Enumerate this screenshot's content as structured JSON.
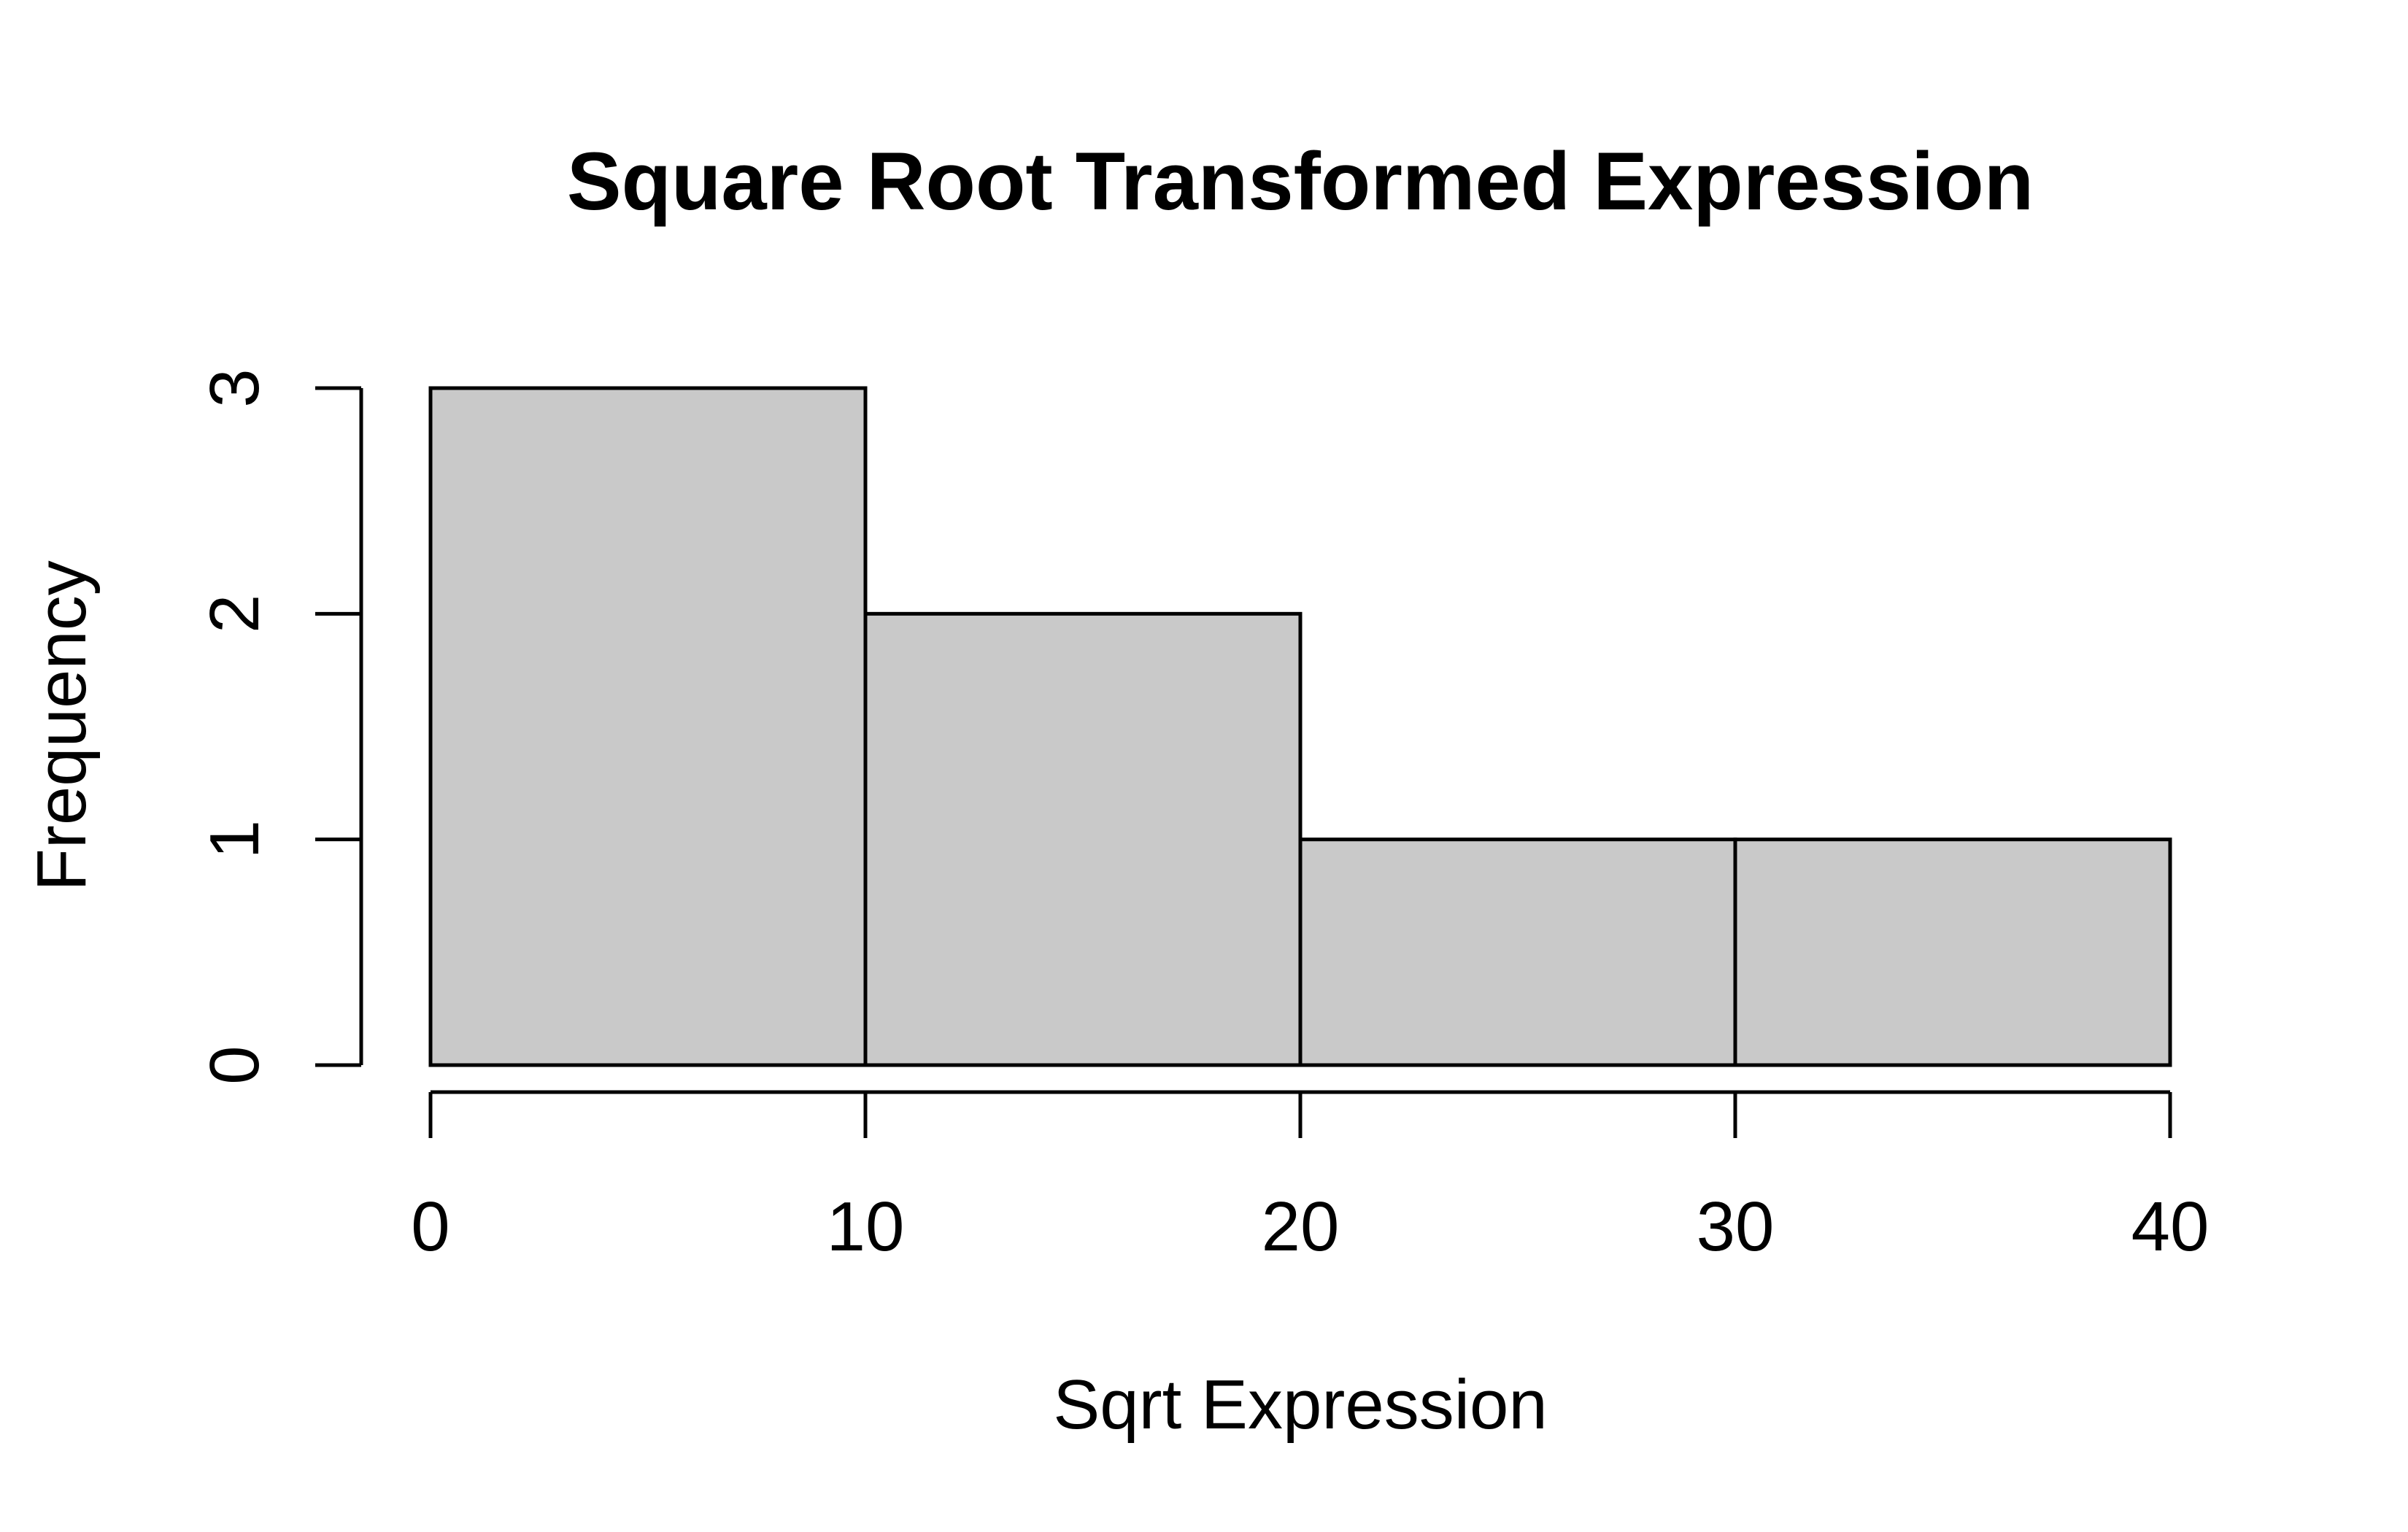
{
  "chart_data": {
    "type": "bar",
    "title": "Square Root Transformed Expression",
    "xlabel": "Sqrt Expression",
    "ylabel": "Frequency",
    "bins": [
      {
        "start": 0,
        "end": 10,
        "count": 3
      },
      {
        "start": 10,
        "end": 20,
        "count": 2
      },
      {
        "start": 20,
        "end": 30,
        "count": 1
      },
      {
        "start": 30,
        "end": 40,
        "count": 1
      }
    ],
    "x_ticks": [
      0,
      10,
      20,
      30,
      40
    ],
    "y_ticks": [
      0,
      1,
      2,
      3
    ],
    "xlim": [
      0,
      40
    ],
    "ylim": [
      0,
      3
    ],
    "grid": false,
    "legend": "none",
    "colors": {
      "bar_fill": "#c9c9c9",
      "bar_stroke": "#000000",
      "text": "#000000"
    }
  }
}
